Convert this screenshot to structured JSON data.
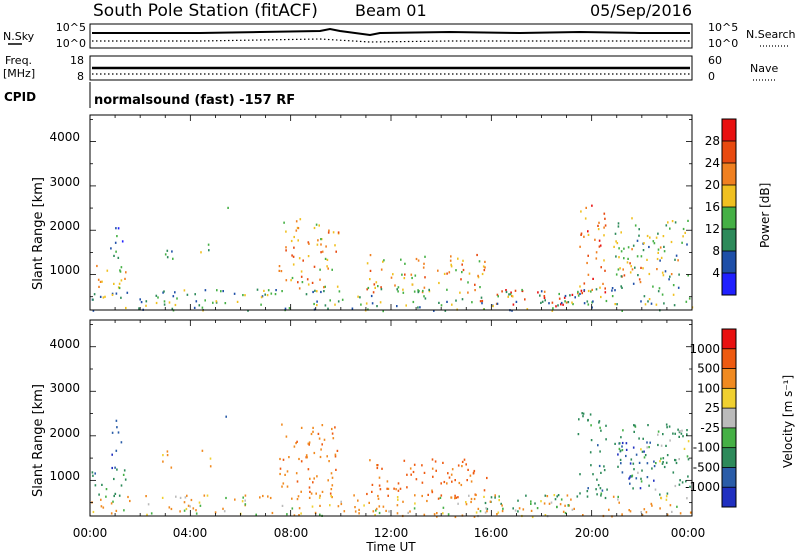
{
  "header": {
    "station": "South Pole Station (fitACF)",
    "beam": "Beam 01",
    "date": "05/Sep/2016"
  },
  "sky_panel": {
    "left_label": "N.Sky",
    "left_ticks": [
      "10^5",
      "10^0"
    ],
    "right_label": "N.Search",
    "right_ticks": [
      "10^5",
      "10^0"
    ]
  },
  "freq_panel": {
    "left_label_line1": "Freq.",
    "left_label_line2": "[MHz]",
    "left_ticks": [
      "18",
      "8"
    ],
    "right_label": "Nave",
    "right_ticks": [
      "60",
      "0"
    ]
  },
  "cpid": {
    "label": "CPID",
    "text": "normalsound (fast) -157 RF"
  },
  "x_axis": {
    "tick_labels": [
      "00:00",
      "04:00",
      "08:00",
      "12:00",
      "16:00",
      "20:00",
      "00:00"
    ],
    "title": "Time UT"
  },
  "power_panel": {
    "ylabel": "Slant Range [km]",
    "y_ticks": [
      "1000",
      "2000",
      "3000",
      "4000"
    ],
    "colorbar_label": "Power [dB]",
    "colorbar_ticks": [
      "4",
      "8",
      "12",
      "16",
      "20",
      "24",
      "28"
    ],
    "colors": [
      "#2020ff",
      "#1e4fa8",
      "#2d8a5a",
      "#45b045",
      "#f0c020",
      "#f08020",
      "#e84a10",
      "#e81010"
    ]
  },
  "velocity_panel": {
    "ylabel": "Slant Range [km]",
    "y_ticks": [
      "1000",
      "2000",
      "3000",
      "4000"
    ],
    "colorbar_label": "Velocity [m s⁻¹]",
    "colorbar_ticks": [
      "1000",
      "500",
      "100",
      "25",
      "-25",
      "-100",
      "-500",
      "-1000"
    ],
    "colors": [
      "#2030c0",
      "#2a5ca8",
      "#2d8a5a",
      "#45b045",
      "#bbbbbb",
      "#f0d030",
      "#f08a20",
      "#ee5a10",
      "#e81010"
    ]
  },
  "chart_data": [
    {
      "type": "heatmap",
      "title": "South Pole Station (fitACF) Beam 01 05/Sep/2016",
      "xlabel": "Time UT",
      "ylabel": "Slant Range [km]",
      "xlim": [
        "00:00",
        "24:00"
      ],
      "ylim": [
        200,
        4600
      ],
      "zlabel": "Power [dB]",
      "zlim": [
        0,
        32
      ],
      "blobs": [
        {
          "t": [
            0.0,
            1.4
          ],
          "r": [
            600,
            1300
          ],
          "z": 18
        },
        {
          "t": [
            0.8,
            1.3
          ],
          "r": [
            1300,
            2400
          ],
          "z": 8
        },
        {
          "t": [
            2.6,
            3.3
          ],
          "r": [
            1300,
            1700
          ],
          "z": 12
        },
        {
          "t": [
            4.3,
            4.8
          ],
          "r": [
            1300,
            1700
          ],
          "z": 14
        },
        {
          "t": [
            5.3,
            5.5
          ],
          "r": [
            2300,
            2700
          ],
          "z": 10
        },
        {
          "t": [
            7.5,
            9.9
          ],
          "r": [
            700,
            2300
          ],
          "z": 20
        },
        {
          "t": [
            11.0,
            15.8
          ],
          "r": [
            600,
            1500
          ],
          "z": 20
        },
        {
          "t": [
            15.5,
            19.6
          ],
          "r": [
            300,
            700
          ],
          "z": 28
        },
        {
          "t": [
            19.4,
            20.6
          ],
          "r": [
            600,
            2600
          ],
          "z": 22
        },
        {
          "t": [
            21.0,
            22.0
          ],
          "r": [
            800,
            1500
          ],
          "z": 24
        },
        {
          "t": [
            20.8,
            23.9
          ],
          "r": [
            700,
            2300
          ],
          "z": 14
        },
        {
          "t": [
            0.0,
            24.0
          ],
          "r": [
            200,
            700
          ],
          "z": 12
        }
      ]
    },
    {
      "type": "heatmap",
      "title": "South Pole Station (fitACF) Beam 01 05/Sep/2016",
      "xlabel": "Time UT",
      "ylabel": "Slant Range [km]",
      "xlim": [
        "00:00",
        "24:00"
      ],
      "ylim": [
        200,
        4600
      ],
      "zlabel": "Velocity [m s⁻¹]",
      "zlim": [
        -1000,
        1000
      ],
      "blobs": [
        {
          "t": [
            0.0,
            1.4
          ],
          "r": [
            600,
            1300
          ],
          "z": 300
        },
        {
          "t": [
            0.8,
            1.3
          ],
          "r": [
            1300,
            2400
          ],
          "z": 800
        },
        {
          "t": [
            2.6,
            3.3
          ],
          "r": [
            1300,
            1700
          ],
          "z": -200
        },
        {
          "t": [
            4.3,
            4.8
          ],
          "r": [
            1300,
            1700
          ],
          "z": -300
        },
        {
          "t": [
            5.3,
            5.5
          ],
          "r": [
            2300,
            2700
          ],
          "z": 800
        },
        {
          "t": [
            7.5,
            9.9
          ],
          "r": [
            700,
            2300
          ],
          "z": -400
        },
        {
          "t": [
            11.0,
            15.8
          ],
          "r": [
            600,
            1500
          ],
          "z": -600
        },
        {
          "t": [
            15.5,
            19.6
          ],
          "r": [
            300,
            700
          ],
          "z": 150
        },
        {
          "t": [
            19.4,
            20.6
          ],
          "r": [
            600,
            2600
          ],
          "z": 300
        },
        {
          "t": [
            21.0,
            22.5
          ],
          "r": [
            800,
            1900
          ],
          "z": 900
        },
        {
          "t": [
            20.8,
            23.9
          ],
          "r": [
            700,
            2300
          ],
          "z": 200
        },
        {
          "t": [
            0.0,
            24.0
          ],
          "r": [
            200,
            700
          ],
          "z": -150
        }
      ]
    }
  ]
}
